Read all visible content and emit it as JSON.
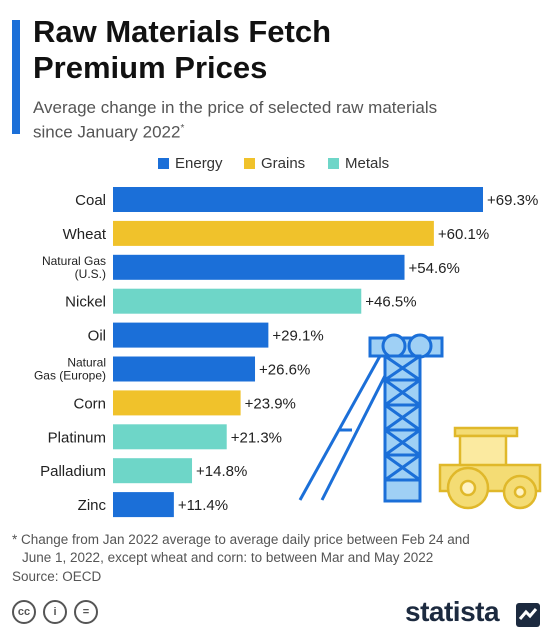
{
  "header": {
    "title_line1": "Raw Materials Fetch",
    "title_line2": "Premium Prices",
    "subtitle_line1": "Average change in the price of selected raw materials",
    "subtitle_line2": "since January 2022",
    "subtitle_mark": "*"
  },
  "legend": [
    {
      "label": "Energy",
      "color": "#1b6fd8"
    },
    {
      "label": "Grains",
      "color": "#f0c22b"
    },
    {
      "label": "Metals",
      "color": "#6ed6c8"
    }
  ],
  "chart_data": {
    "type": "bar",
    "orientation": "horizontal",
    "categories": [
      "Coal",
      "Wheat",
      "Natural Gas (U.S.)",
      "Nickel",
      "Oil",
      "Natural Gas (Europe)",
      "Corn",
      "Platinum",
      "Palladium",
      "Zinc"
    ],
    "category_lines": [
      [
        "Coal"
      ],
      [
        "Wheat"
      ],
      [
        "Natural Gas",
        "(U.S.)"
      ],
      [
        "Nickel"
      ],
      [
        "Oil"
      ],
      [
        "Natural",
        "Gas (Europe)"
      ],
      [
        "Corn"
      ],
      [
        "Platinum"
      ],
      [
        "Palladium"
      ],
      [
        "Zinc"
      ]
    ],
    "values": [
      69.3,
      60.1,
      54.6,
      46.5,
      29.1,
      26.6,
      23.9,
      21.3,
      14.8,
      11.4
    ],
    "value_labels": [
      "+69.3%",
      "+60.1%",
      "+54.6%",
      "+46.5%",
      "+29.1%",
      "+26.6%",
      "+23.9%",
      "+21.3%",
      "+14.8%",
      "+11.4%"
    ],
    "groups": [
      "Energy",
      "Grains",
      "Energy",
      "Metals",
      "Energy",
      "Energy",
      "Grains",
      "Metals",
      "Metals",
      "Energy"
    ],
    "colors": {
      "Energy": "#1b6fd8",
      "Grains": "#f0c22b",
      "Metals": "#6ed6c8"
    },
    "xlim": [
      0,
      69.3
    ],
    "legend_position": "top",
    "grid": false
  },
  "footer": {
    "footnote_line1": "* Change from Jan 2022 average to average daily price between Feb 24 and",
    "footnote_line2": "June 1, 2022, except wheat and corn: to between Mar and May 2022",
    "source": "Source: OECD",
    "cc_icons": [
      "cc-icon",
      "by-icon",
      "nd-icon"
    ],
    "cc_glyphs": [
      "cc",
      "i",
      "="
    ],
    "brand": "statista"
  }
}
